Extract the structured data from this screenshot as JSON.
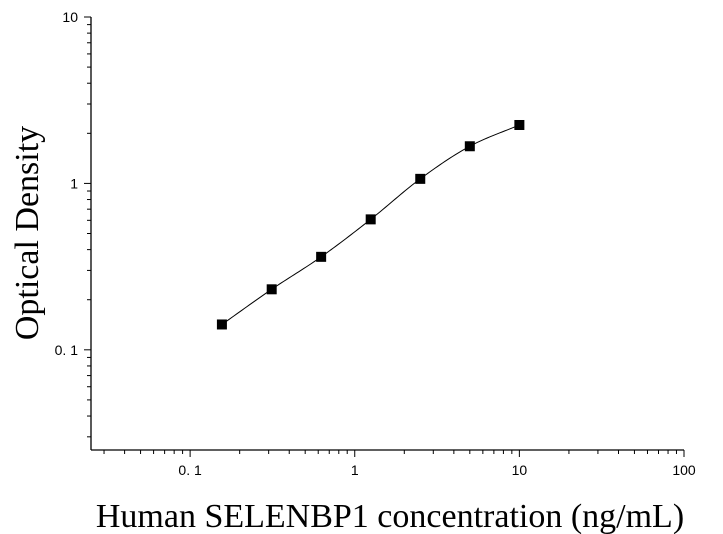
{
  "chart_data": {
    "type": "scatter",
    "title": "",
    "xlabel": "Human SELENBP1 concentration (ng/mL)",
    "ylabel": "Optical Density",
    "x_scale": "log",
    "y_scale": "log",
    "xlim": [
      0.025,
      100
    ],
    "ylim": [
      0.025,
      10
    ],
    "x_ticks": [
      {
        "value": 0.1,
        "label": "0. 1"
      },
      {
        "value": 1,
        "label": "1"
      },
      {
        "value": 10,
        "label": "10"
      },
      {
        "value": 100,
        "label": "100"
      }
    ],
    "y_ticks": [
      {
        "value": 0.1,
        "label": "0. 1"
      },
      {
        "value": 1,
        "label": "1"
      },
      {
        "value": 10,
        "label": "10"
      }
    ],
    "grid": false,
    "series": [
      {
        "marker": "square",
        "color": "#000000",
        "x": [
          0.156,
          0.313,
          0.625,
          1.25,
          2.5,
          5,
          10
        ],
        "y": [
          0.142,
          0.231,
          0.362,
          0.608,
          1.065,
          1.672,
          2.244
        ]
      }
    ],
    "fit_curve": {
      "color": "#000000",
      "type": "4PL"
    }
  }
}
